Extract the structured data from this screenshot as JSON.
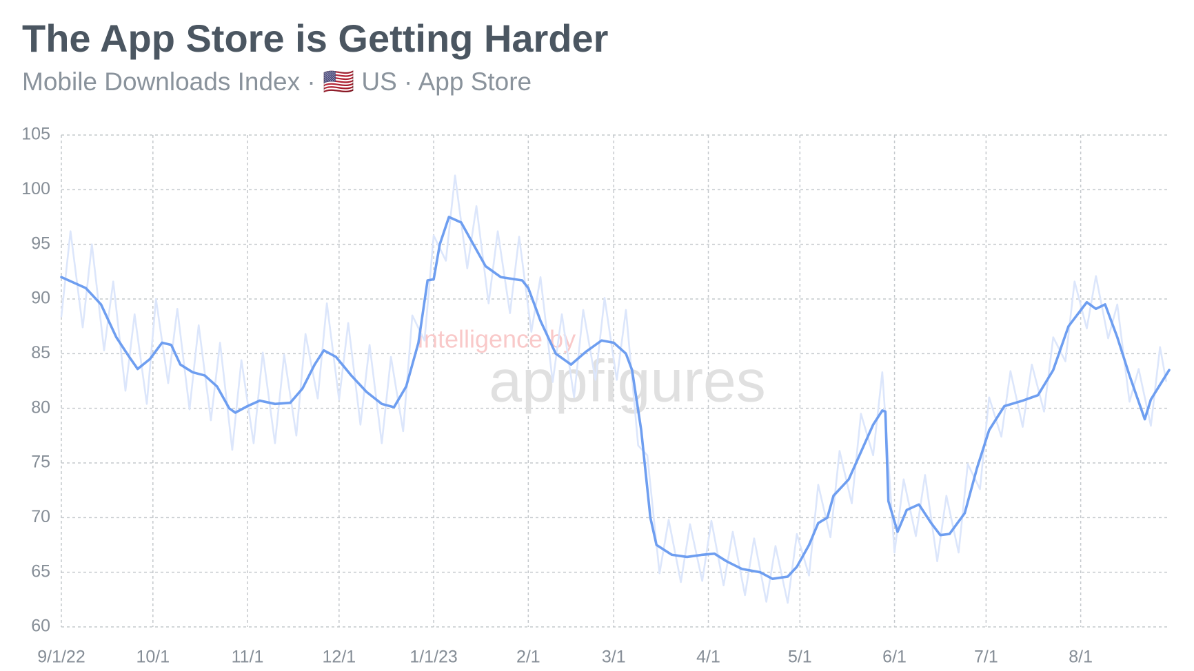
{
  "chart_data": {
    "type": "line",
    "title": "The App Store is Getting Harder",
    "subtitle": "Mobile Downloads Index · 🇺🇸 US · App Store",
    "watermark": {
      "top": "Intelligence by",
      "bottom": "appfigures"
    },
    "xlim": [
      "2022-09-01",
      "2023-08-30"
    ],
    "xticks": [
      {
        "value": "2022-09-01",
        "label": "9/1/22"
      },
      {
        "value": "2022-10-01",
        "label": "10/1"
      },
      {
        "value": "2022-11-01",
        "label": "11/1"
      },
      {
        "value": "2022-12-01",
        "label": "12/1"
      },
      {
        "value": "2023-01-01",
        "label": "1/1/23"
      },
      {
        "value": "2023-02-01",
        "label": "2/1"
      },
      {
        "value": "2023-03-01",
        "label": "3/1"
      },
      {
        "value": "2023-04-01",
        "label": "4/1"
      },
      {
        "value": "2023-05-01",
        "label": "5/1"
      },
      {
        "value": "2023-06-01",
        "label": "6/1"
      },
      {
        "value": "2023-07-01",
        "label": "7/1"
      },
      {
        "value": "2023-08-01",
        "label": "8/1"
      }
    ],
    "ylim": [
      60,
      105
    ],
    "yticks": [
      60,
      65,
      70,
      75,
      80,
      85,
      90,
      95,
      100,
      105
    ],
    "grid": true,
    "series": [
      {
        "color": "#dce6fb",
        "x": [
          "2022-09-01",
          "2022-09-04",
          "2022-09-08",
          "2022-09-11",
          "2022-09-15",
          "2022-09-18",
          "2022-09-22",
          "2022-09-25",
          "2022-09-29",
          "2022-10-02",
          "2022-10-06",
          "2022-10-09",
          "2022-10-13",
          "2022-10-16",
          "2022-10-20",
          "2022-10-23",
          "2022-10-27",
          "2022-10-30",
          "2022-11-03",
          "2022-11-06",
          "2022-11-10",
          "2022-11-13",
          "2022-11-17",
          "2022-11-20",
          "2022-11-24",
          "2022-11-27",
          "2022-12-01",
          "2022-12-04",
          "2022-12-08",
          "2022-12-11",
          "2022-12-15",
          "2022-12-18",
          "2022-12-22",
          "2022-12-25",
          "2022-12-29",
          "2023-01-01",
          "2023-01-05",
          "2023-01-08",
          "2023-01-12",
          "2023-01-15",
          "2023-01-19",
          "2023-01-22",
          "2023-01-26",
          "2023-01-29",
          "2023-02-02",
          "2023-02-05",
          "2023-02-09",
          "2023-02-12",
          "2023-02-16",
          "2023-02-19",
          "2023-02-23",
          "2023-02-26",
          "2023-03-02",
          "2023-03-05",
          "2023-03-09",
          "2023-03-12",
          "2023-03-16",
          "2023-03-19",
          "2023-03-23",
          "2023-03-26",
          "2023-03-30",
          "2023-04-02",
          "2023-04-06",
          "2023-04-09",
          "2023-04-13",
          "2023-04-16",
          "2023-04-20",
          "2023-04-23",
          "2023-04-27",
          "2023-04-30",
          "2023-05-04",
          "2023-05-07",
          "2023-05-11",
          "2023-05-14",
          "2023-05-18",
          "2023-05-21",
          "2023-05-25",
          "2023-05-28",
          "2023-06-01",
          "2023-06-04",
          "2023-06-08",
          "2023-06-11",
          "2023-06-15",
          "2023-06-18",
          "2023-06-22",
          "2023-06-25",
          "2023-06-29",
          "2023-07-02",
          "2023-07-06",
          "2023-07-09",
          "2023-07-13",
          "2023-07-16",
          "2023-07-20",
          "2023-07-23",
          "2023-07-27",
          "2023-07-30",
          "2023-08-03",
          "2023-08-06",
          "2023-08-10",
          "2023-08-13",
          "2023-08-17",
          "2023-08-20",
          "2023-08-24",
          "2023-08-27",
          "2023-08-29"
        ],
        "values": [
          88.4,
          96.2,
          87.4,
          95,
          85.3,
          91.6,
          81.6,
          88.6,
          80.4,
          90,
          82.3,
          89.1,
          79.9,
          87.6,
          78.9,
          86,
          76.2,
          84.4,
          76.8,
          85.1,
          76.8,
          84.9,
          77.5,
          86.8,
          80.9,
          89.6,
          80.8,
          87.8,
          78.5,
          85.8,
          76.8,
          84.7,
          77.9,
          88.5,
          86.2,
          95.8,
          93.5,
          101.3,
          92.8,
          98.5,
          89.6,
          96.2,
          88.7,
          95.7,
          87,
          92,
          82.4,
          88.6,
          81,
          89,
          82.6,
          90.1,
          82.6,
          89,
          76.6,
          75.7,
          64.9,
          69.8,
          64.1,
          69.4,
          64.2,
          69.7,
          63.8,
          68.7,
          62.9,
          68.1,
          62.3,
          67.4,
          62.2,
          68.5,
          64.7,
          73,
          68.2,
          76.1,
          71.3,
          79.5,
          75.7,
          83.3,
          66.8,
          73.5,
          68.3,
          73.9,
          66,
          72,
          66.8,
          74.9,
          72.6,
          81,
          77.4,
          83.4,
          78.3,
          84,
          79.7,
          86.5,
          84.3,
          91.6,
          87.3,
          92.1,
          86.4,
          89.5,
          80.6,
          83.6,
          78.4,
          85.6,
          82.5
        ]
      },
      {
        "color": "#6e9ef0",
        "x": [
          "2022-09-01",
          "2022-09-09",
          "2022-09-14",
          "2022-09-19",
          "2022-09-23",
          "2022-09-26",
          "2022-09-30",
          "2022-10-04",
          "2022-10-07",
          "2022-10-10",
          "2022-10-14",
          "2022-10-18",
          "2022-10-22",
          "2022-10-26",
          "2022-10-28",
          "2022-11-01",
          "2022-11-05",
          "2022-11-10",
          "2022-11-15",
          "2022-11-19",
          "2022-11-23",
          "2022-11-26",
          "2022-11-30",
          "2022-12-05",
          "2022-12-10",
          "2022-12-15",
          "2022-12-19",
          "2022-12-23",
          "2022-12-27",
          "2022-12-30",
          "2023-01-01",
          "2023-01-03",
          "2023-01-06",
          "2023-01-10",
          "2023-01-13",
          "2023-01-18",
          "2023-01-23",
          "2023-01-30",
          "2023-02-01",
          "2023-02-05",
          "2023-02-10",
          "2023-02-15",
          "2023-02-20",
          "2023-02-25",
          "2023-03-01",
          "2023-03-05",
          "2023-03-07",
          "2023-03-10",
          "2023-03-13",
          "2023-03-15",
          "2023-03-20",
          "2023-03-25",
          "2023-03-30",
          "2023-04-03",
          "2023-04-07",
          "2023-04-12",
          "2023-04-18",
          "2023-04-22",
          "2023-04-27",
          "2023-04-30",
          "2023-05-04",
          "2023-05-07",
          "2023-05-10",
          "2023-05-12",
          "2023-05-17",
          "2023-05-21",
          "2023-05-25",
          "2023-05-28",
          "2023-05-29",
          "2023-05-30",
          "2023-06-02",
          "2023-06-05",
          "2023-06-09",
          "2023-06-13",
          "2023-06-16",
          "2023-06-19",
          "2023-06-24",
          "2023-06-28",
          "2023-07-02",
          "2023-07-07",
          "2023-07-13",
          "2023-07-18",
          "2023-07-23",
          "2023-07-28",
          "2023-08-03",
          "2023-08-06",
          "2023-08-09",
          "2023-08-13",
          "2023-08-17",
          "2023-08-22",
          "2023-08-24",
          "2023-08-30"
        ],
        "values": [
          92,
          91,
          89.5,
          86.5,
          84.8,
          83.6,
          84.5,
          86,
          85.8,
          84,
          83.3,
          83,
          82,
          80,
          79.6,
          80.2,
          80.7,
          80.4,
          80.5,
          81.8,
          84,
          85.3,
          84.7,
          83,
          81.5,
          80.4,
          80.1,
          82,
          86,
          91.7,
          91.8,
          95,
          97.5,
          97,
          95.5,
          93,
          92,
          91.7,
          91,
          88,
          85,
          84,
          85.2,
          86.2,
          86,
          85,
          83.5,
          78,
          70,
          67.5,
          66.6,
          66.4,
          66.6,
          66.7,
          66,
          65.3,
          65,
          64.4,
          64.6,
          65.5,
          67.5,
          69.5,
          70,
          72,
          73.5,
          76,
          78.5,
          79.8,
          79.7,
          71.5,
          68.7,
          70.7,
          71.2,
          69.5,
          68.4,
          68.5,
          70.4,
          74.5,
          78,
          80.2,
          80.7,
          81.2,
          83.5,
          87.5,
          89.7,
          89.1,
          89.5,
          86.5,
          83,
          79,
          80.8,
          83.5
        ]
      }
    ]
  }
}
